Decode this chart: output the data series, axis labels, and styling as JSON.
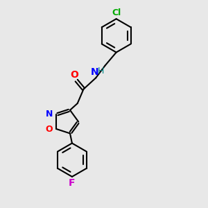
{
  "background_color": "#e8e8e8",
  "bond_color": "#000000",
  "bond_width": 1.5,
  "atom_colors": {
    "N": "#0000ff",
    "O": "#ff0000",
    "F": "#cc00cc",
    "Cl": "#00aa00",
    "H": "#008888",
    "C": "#000000"
  },
  "font_size": 9,
  "fig_size": [
    3.0,
    3.0
  ],
  "dpi": 100
}
